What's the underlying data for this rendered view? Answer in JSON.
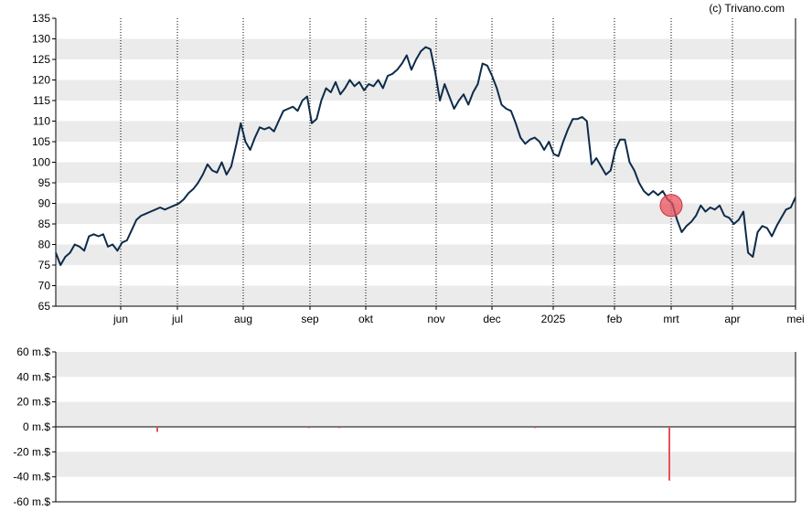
{
  "copyright": "(c) Trivano.com",
  "chart_data": [
    {
      "type": "line",
      "title": "",
      "xlabel": "",
      "ylabel": "",
      "ylim": [
        65,
        135
      ],
      "y_ticks": [
        "135",
        "130",
        "125",
        "120",
        "115",
        "110",
        "105",
        "100",
        "95",
        "90",
        "85",
        "80",
        "75",
        "70",
        "65"
      ],
      "x_ticks": [
        "jun",
        "jul",
        "aug",
        "sep",
        "okt",
        "nov",
        "dec",
        "2025",
        "feb",
        "mrt",
        "apr",
        "mei"
      ],
      "grid": "vertical dotted lines at month starts, alternating grey/white horizontal bands",
      "line_color": "#0d2b4a",
      "marker": {
        "label": "mrt",
        "value": 89.5,
        "color": "#e8505b"
      },
      "series": [
        {
          "values": [
            78,
            75,
            77,
            78,
            80,
            79.5,
            78.5,
            82,
            82.5,
            82,
            82.5,
            79.5,
            80,
            78.5,
            80.5,
            81,
            83.5,
            86,
            87,
            87.5,
            88,
            88.5,
            89,
            88.5,
            89,
            89.5,
            90,
            91,
            92.5,
            93.5,
            95,
            97,
            99.5,
            98,
            97.5,
            100,
            97,
            99,
            104,
            109.5,
            105,
            103,
            106,
            108.5,
            108,
            108.5,
            107.5,
            110,
            112.5,
            113,
            113.5,
            112.5,
            115,
            116,
            109.5,
            110.5,
            115,
            118,
            117,
            119.5,
            116.5,
            118,
            120,
            118.5,
            119.5,
            117.5,
            119,
            118.5,
            120,
            118,
            121,
            121.5,
            122.5,
            124,
            126,
            122.5,
            125,
            127,
            128,
            127.5,
            122,
            115,
            119,
            116,
            113,
            115,
            116.5,
            114,
            117,
            119,
            124,
            123.5,
            121,
            118,
            114,
            113,
            112.5,
            109.5,
            106,
            104.5,
            105.5,
            106,
            105,
            103,
            105,
            102,
            101.5,
            105,
            108,
            110.5,
            110.5,
            111,
            110,
            99.5,
            101,
            99,
            97,
            98,
            103,
            105.5,
            105.5,
            100,
            98,
            95,
            93,
            92,
            93,
            92,
            93,
            91,
            90,
            86,
            83,
            84.5,
            85.5,
            87,
            89.5,
            88,
            89,
            88.5,
            89.5,
            87,
            86.5,
            85,
            86,
            88,
            78,
            77,
            83,
            84.5,
            84,
            82,
            84.5,
            86.5,
            88.5,
            89,
            91.5
          ]
        }
      ]
    },
    {
      "type": "bar",
      "title": "",
      "xlabel": "",
      "ylabel": "",
      "ylim": [
        -60,
        60
      ],
      "y_ticks": [
        "60 m.$",
        "40 m.$",
        "20 m.$",
        "0 m.$",
        "-20 m.$",
        "-40 m.$",
        "-60 m.$"
      ],
      "bar_color": "#e8505b",
      "bars": [
        {
          "x": "jun-late",
          "value": -4
        },
        {
          "x": "sep-early",
          "value": -1
        },
        {
          "x": "sep-mid",
          "value": -1
        },
        {
          "x": "jan-late",
          "value": -1
        },
        {
          "x": "mrt",
          "value": -43
        }
      ]
    }
  ]
}
